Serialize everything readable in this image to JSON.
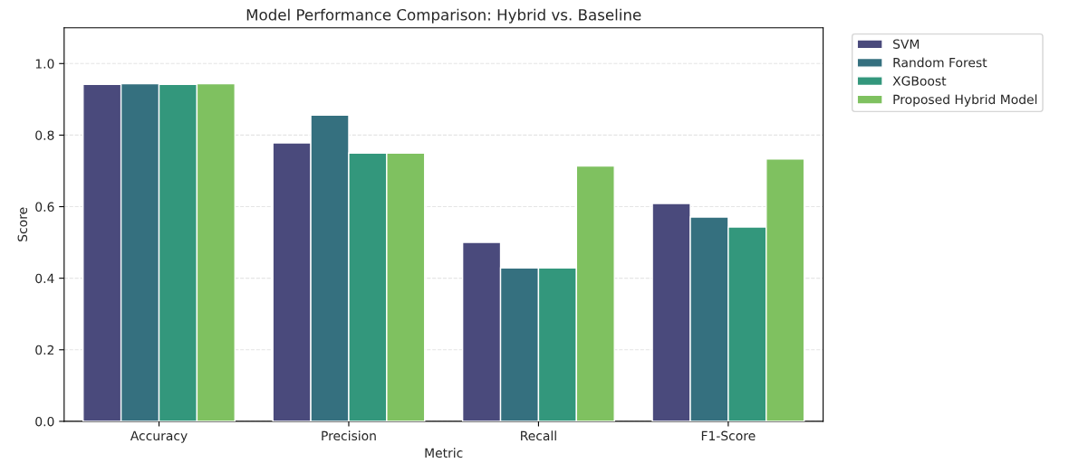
{
  "chart_data": {
    "type": "bar",
    "title": "Model Performance Comparison: Hybrid vs. Baseline",
    "xlabel": "Metric",
    "ylabel": "Score",
    "categories": [
      "Accuracy",
      "Precision",
      "Recall",
      "F1-Score"
    ],
    "series": [
      {
        "name": "SVM",
        "color": "#4a4a7c",
        "values": [
          0.942,
          0.778,
          0.5,
          0.609
        ]
      },
      {
        "name": "Random Forest",
        "color": "#35707f",
        "values": [
          0.944,
          0.856,
          0.429,
          0.571
        ]
      },
      {
        "name": "XGBoost",
        "color": "#33977c",
        "values": [
          0.942,
          0.75,
          0.429,
          0.543
        ]
      },
      {
        "name": "Proposed Hybrid Model",
        "color": "#7fc160",
        "values": [
          0.944,
          0.75,
          0.714,
          0.733
        ]
      }
    ],
    "ylim": [
      0,
      1.1
    ],
    "yticks": [
      {
        "value": 0,
        "label": "0.0"
      },
      {
        "value": 0.2,
        "label": "0.2"
      },
      {
        "value": 0.4,
        "label": "0.4"
      },
      {
        "value": 0.6,
        "label": "0.6"
      },
      {
        "value": 0.8,
        "label": "0.8"
      },
      {
        "value": 1.0,
        "label": "1.0"
      }
    ],
    "grid": "y",
    "legend": "top right"
  }
}
